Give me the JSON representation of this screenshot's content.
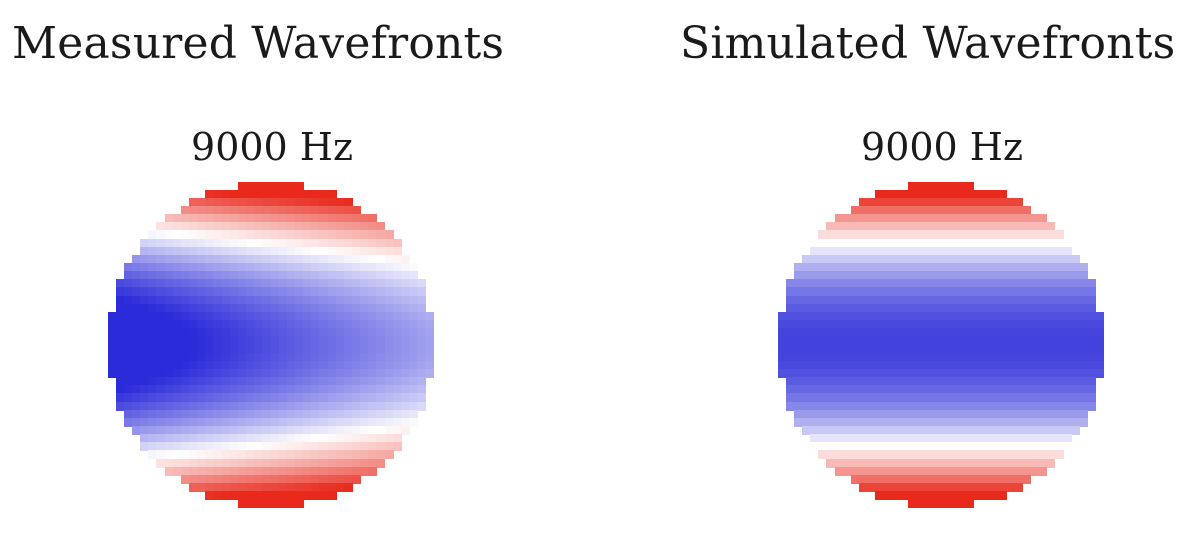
{
  "panels": [
    {
      "title": "Measured Wavefronts",
      "frequency_label": "9000 Hz",
      "pattern": "measured",
      "colormap": [
        "#2b2bd9",
        "#ffffff",
        "#e8291c"
      ]
    },
    {
      "title": "Simulated Wavefronts",
      "frequency_label": "9000 Hz",
      "pattern": "simulated",
      "colormap": [
        "#2b2bd9",
        "#ffffff",
        "#e8291c"
      ]
    }
  ]
}
